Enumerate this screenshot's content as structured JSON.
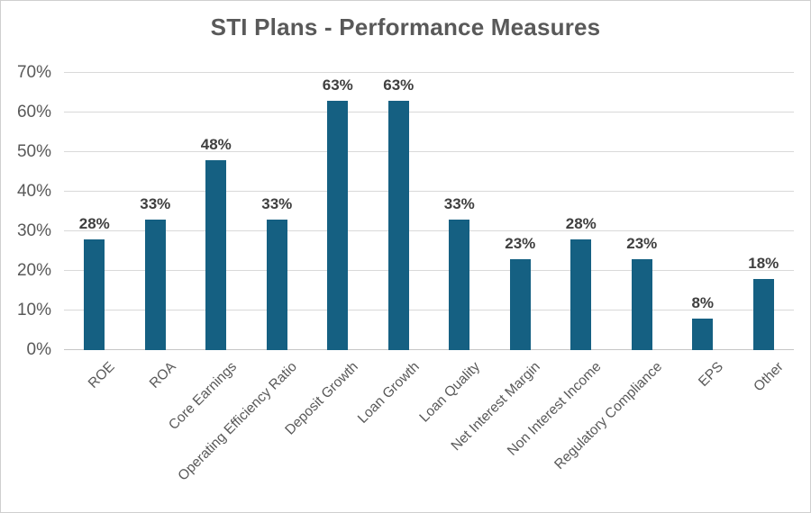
{
  "title": "STI Plans - Performance Measures",
  "colors": {
    "bar": "#156082",
    "gridline": "#d9d9d9",
    "axis_line": "#c6c6c6",
    "axis_text": "#595959",
    "data_label_text": "#3f3f3f",
    "title_text": "#595959",
    "frame_border": "#cfcfcf",
    "background": "#ffffff"
  },
  "chart_data": {
    "type": "bar",
    "title": "STI Plans - Performance Measures",
    "categories": [
      "ROE",
      "ROA",
      "Core Earnings",
      "Operating Efficiency Ratio",
      "Deposit Growth",
      "Loan Growth",
      "Loan Quality",
      "Net Interest Margin",
      "Non Interest Income",
      "Regulatory Compliance",
      "EPS",
      "Other"
    ],
    "values": [
      28,
      33,
      48,
      33,
      63,
      63,
      33,
      23,
      28,
      23,
      8,
      18
    ],
    "data_labels": [
      "28%",
      "33%",
      "48%",
      "33%",
      "63%",
      "63%",
      "33%",
      "23%",
      "28%",
      "23%",
      "8%",
      "18%"
    ],
    "xlabel": "",
    "ylabel": "",
    "ylim": [
      0,
      70
    ],
    "ytick_step": 10,
    "ytick_labels": [
      "0%",
      "10%",
      "20%",
      "30%",
      "40%",
      "50%",
      "60%",
      "70%"
    ],
    "grid": true,
    "legend_position": "none",
    "x_tick_rotation_deg": 45
  }
}
